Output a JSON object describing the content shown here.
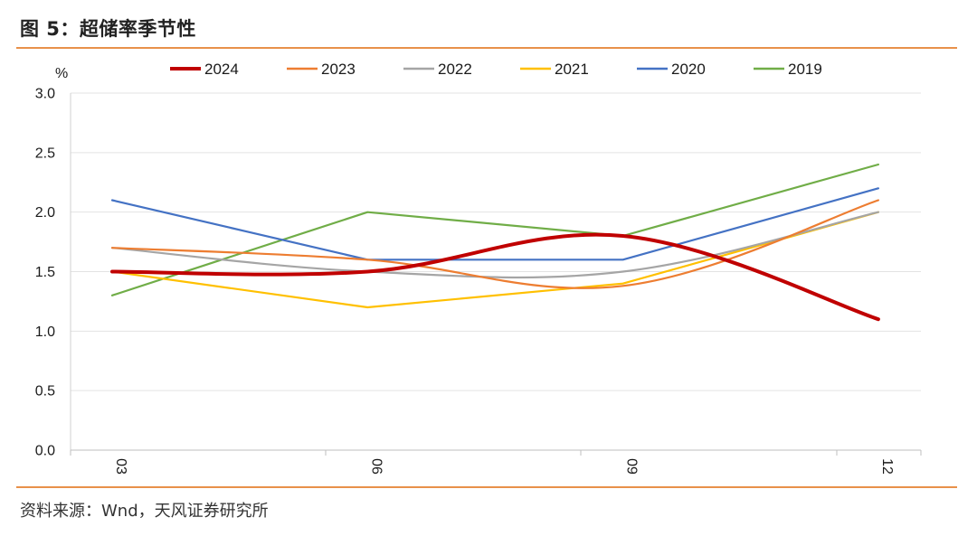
{
  "figure": {
    "title": "图 5：超储率季节性",
    "source": "资料来源：Wnd，天风证券研究所"
  },
  "chart_data": {
    "type": "line",
    "unit_label": "%",
    "categories": [
      "03",
      "06",
      "09",
      "12"
    ],
    "ylim": [
      0.0,
      3.0
    ],
    "yticks": [
      "0.0",
      "0.5",
      "1.0",
      "1.5",
      "2.0",
      "2.5",
      "3.0"
    ],
    "grid": true,
    "legend_position": "top",
    "series": [
      {
        "name": "2024",
        "color": "#c00000",
        "emphasis": true,
        "values": [
          1.5,
          1.5,
          1.8,
          1.1
        ]
      },
      {
        "name": "2023",
        "color": "#ed7d31",
        "values": [
          1.7,
          1.6,
          1.38,
          2.1
        ]
      },
      {
        "name": "2022",
        "color": "#a5a5a5",
        "values": [
          1.7,
          1.5,
          1.5,
          2.0
        ]
      },
      {
        "name": "2021",
        "color": "#ffc000",
        "values": [
          1.5,
          1.2,
          1.4,
          2.0
        ]
      },
      {
        "name": "2020",
        "color": "#4472c4",
        "values": [
          2.1,
          1.6,
          1.6,
          2.2
        ]
      },
      {
        "name": "2019",
        "color": "#70ad47",
        "values": [
          1.3,
          2.0,
          1.8,
          2.4
        ]
      }
    ]
  }
}
